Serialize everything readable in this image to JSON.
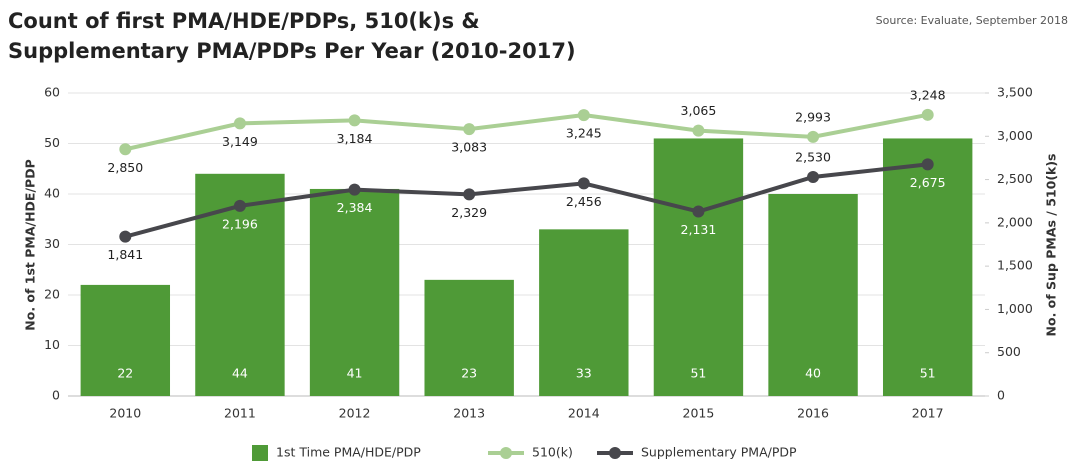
{
  "chart_data": {
    "type": "combo",
    "title": "Count of first PMA/HDE/PDPs, 510(k)s & Supplementary PMA/PDPs Per Year (2010-2017)",
    "source": "Source: Evaluate, September 2018",
    "y_label": "No. of 1st PMA/HDE/PDP",
    "y2_label": "No. of Sup PMAs / 510(k)s",
    "categories": [
      "2010",
      "2011",
      "2012",
      "2013",
      "2014",
      "2015",
      "2016",
      "2017"
    ],
    "series": [
      {
        "name": "1st Time PMA/HDE/PDP",
        "type": "bar",
        "color": "#4f9a37",
        "values": [
          22,
          44,
          41,
          23,
          33,
          51,
          40,
          51
        ]
      },
      {
        "name": "510(k)",
        "type": "line",
        "axis": "y2",
        "color": "#aacf94",
        "values": [
          2850,
          3149,
          3184,
          3083,
          3245,
          3065,
          2993,
          3248
        ],
        "value_labels": [
          "2,850",
          "3,149",
          "3,184",
          "3,083",
          "3,245",
          "3,065",
          "2,993",
          "3,248"
        ]
      },
      {
        "name": "Supplementary PMA/PDP",
        "type": "line",
        "axis": "y2",
        "color": "#47474c",
        "values": [
          1841,
          2196,
          2384,
          2329,
          2456,
          2131,
          2530,
          2675
        ],
        "value_labels": [
          "1,841",
          "2,196",
          "2,384",
          "2,329",
          "2,456",
          "2,131",
          "2,530",
          "2,675"
        ]
      }
    ],
    "ylim": [
      0,
      60
    ],
    "yticks": [
      0,
      10,
      20,
      30,
      40,
      50,
      60
    ],
    "y2lim": [
      0,
      3500
    ],
    "y2ticks": [
      0,
      500,
      {
        "value": 1000,
        "label": "1,000"
      },
      {
        "value": 1500,
        "label": "1,500"
      },
      {
        "value": 2000,
        "label": "2,000"
      },
      {
        "value": 2500,
        "label": "2,500"
      },
      {
        "value": 3000,
        "label": "3,000"
      },
      {
        "value": 3500,
        "label": "3,500"
      }
    ],
    "grid": true,
    "legend": "bottom"
  }
}
